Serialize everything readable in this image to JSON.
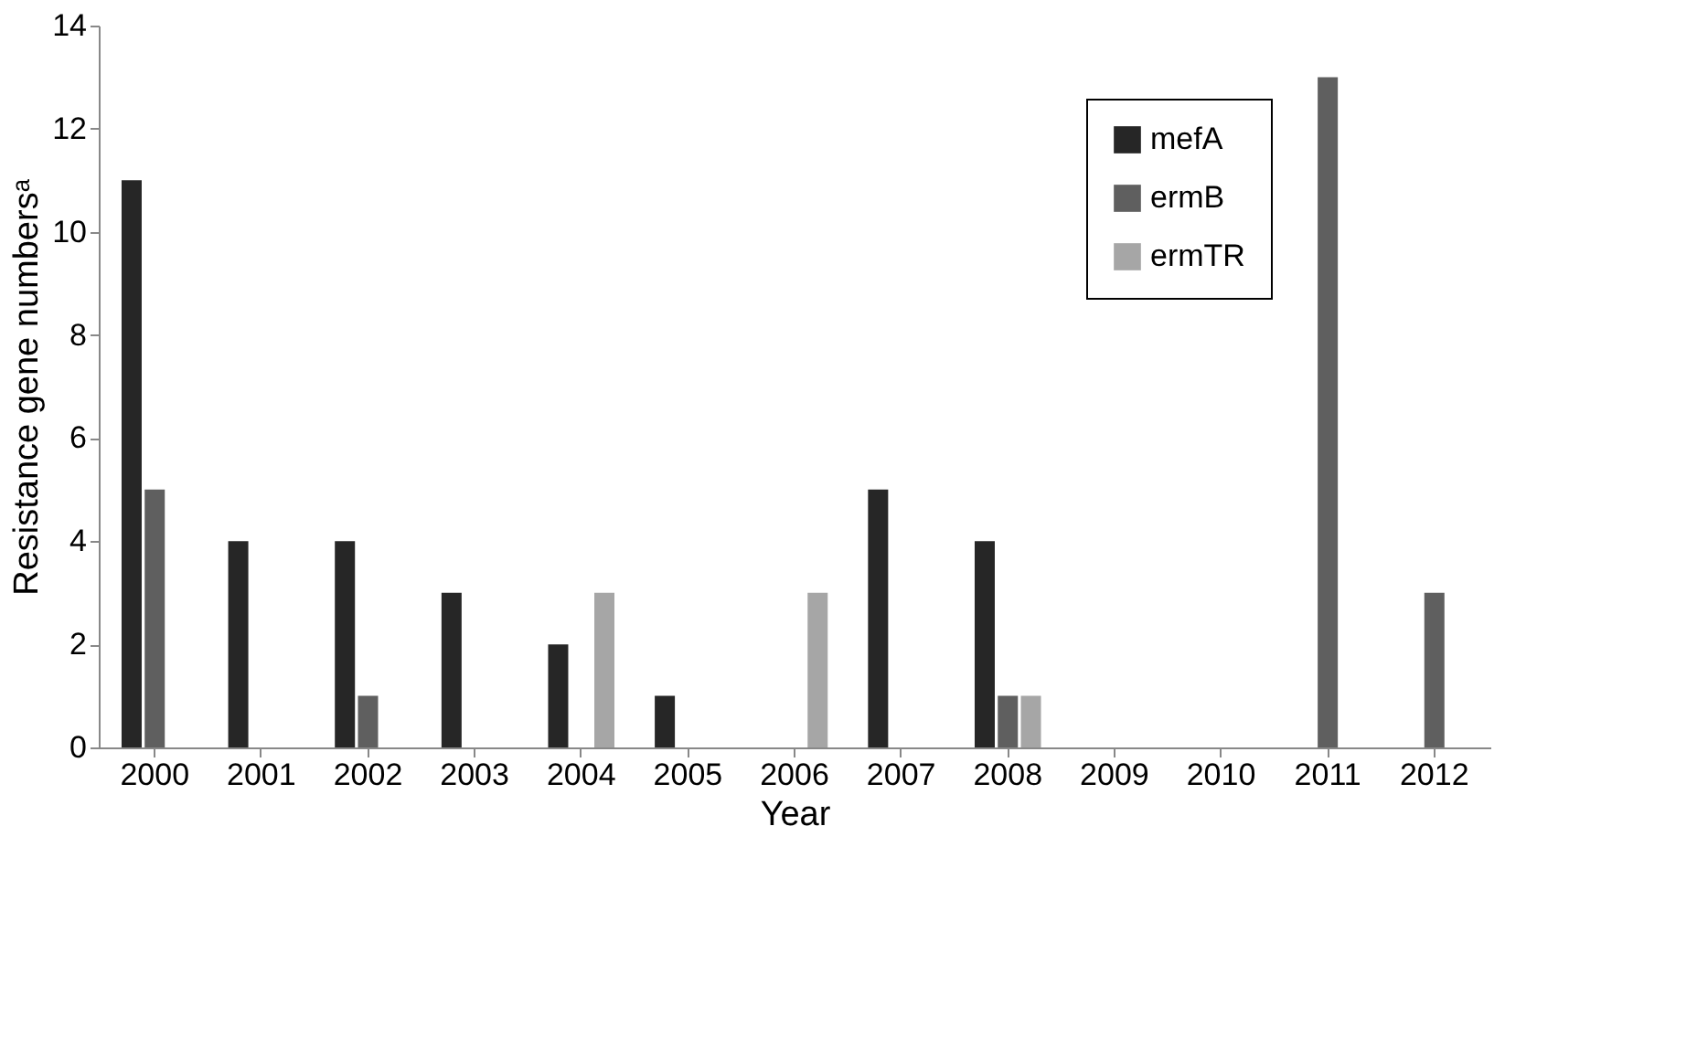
{
  "chart_data": {
    "type": "bar",
    "xlabel": "Year",
    "ylabel": "Resistance gene numbersᵃ",
    "categories": [
      "2000",
      "2001",
      "2002",
      "2003",
      "2004",
      "2005",
      "2006",
      "2007",
      "2008",
      "2009",
      "2010",
      "2011",
      "2012"
    ],
    "series": [
      {
        "name": "mefA",
        "color": "#262626",
        "values": [
          11,
          4,
          4,
          3,
          2,
          1,
          0,
          5,
          4,
          0,
          0,
          0,
          0
        ]
      },
      {
        "name": "ermB",
        "color": "#5f5f5f",
        "values": [
          5,
          0,
          1,
          0,
          0,
          0,
          0,
          0,
          1,
          0,
          0,
          13,
          3
        ]
      },
      {
        "name": "ermTR",
        "color": "#a6a6a6",
        "values": [
          0,
          0,
          0,
          0,
          3,
          0,
          3,
          0,
          1,
          0,
          0,
          0,
          0
        ]
      }
    ],
    "ylim": [
      0,
      14
    ],
    "yticks": [
      0,
      2,
      4,
      6,
      8,
      10,
      12,
      14
    ],
    "grid": false,
    "legend": "top right"
  }
}
